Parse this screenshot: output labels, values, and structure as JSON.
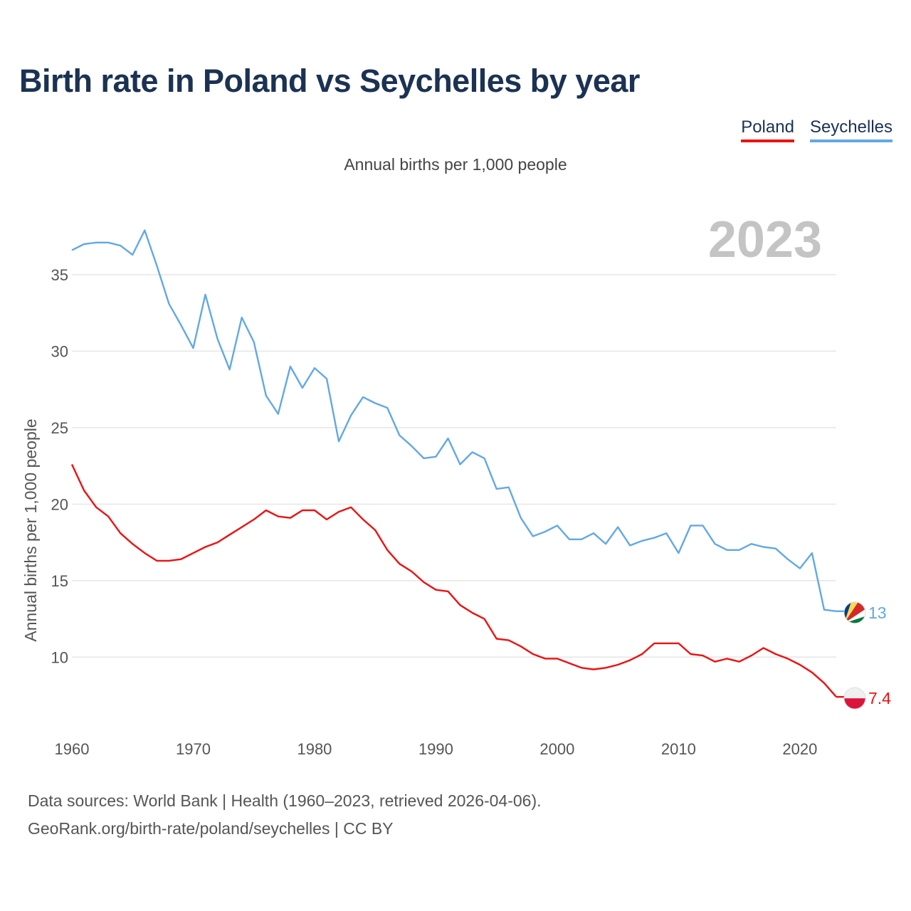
{
  "title": "Birth rate in Poland vs Seychelles by year",
  "subtitle": "Annual births per 1,000 people",
  "legend": [
    {
      "label": "Poland",
      "color": "#ee1111"
    },
    {
      "label": "Seychelles",
      "color": "#62a8e5"
    }
  ],
  "footer": {
    "sources": "Data sources: World Bank | Health (1960–2023, retrieved 2026-04-06).",
    "credit": "GeoRank.org/birth-rate/poland/seychelles | CC BY"
  },
  "chart_data": {
    "type": "line",
    "title": "Birth rate in Poland vs Seychelles by year",
    "ylabel": "Annual births per 1,000 people",
    "xlabel": "",
    "year_watermark": "2023",
    "xlim": [
      1960,
      2023
    ],
    "ylim": [
      5.5,
      39
    ],
    "x_ticks": [
      1960,
      1970,
      1980,
      1990,
      2000,
      2010,
      2020
    ],
    "y_ticks": [
      10,
      15,
      20,
      25,
      30,
      35
    ],
    "grid": true,
    "x": [
      1960,
      1961,
      1962,
      1963,
      1964,
      1965,
      1966,
      1967,
      1968,
      1969,
      1970,
      1971,
      1972,
      1973,
      1974,
      1975,
      1976,
      1977,
      1978,
      1979,
      1980,
      1981,
      1982,
      1983,
      1984,
      1985,
      1986,
      1987,
      1988,
      1989,
      1990,
      1991,
      1992,
      1993,
      1994,
      1995,
      1996,
      1997,
      1998,
      1999,
      2000,
      2001,
      2002,
      2003,
      2004,
      2005,
      2006,
      2007,
      2008,
      2009,
      2010,
      2011,
      2012,
      2013,
      2014,
      2015,
      2016,
      2017,
      2018,
      2019,
      2020,
      2021,
      2022,
      2023
    ],
    "series": [
      {
        "name": "Poland",
        "color": "#ee1111",
        "end_label": "7.4",
        "values": [
          22.6,
          20.9,
          19.8,
          19.2,
          18.1,
          17.4,
          16.8,
          16.3,
          16.3,
          16.4,
          16.8,
          17.2,
          17.5,
          18.0,
          18.5,
          19.0,
          19.6,
          19.2,
          19.1,
          19.6,
          19.6,
          19.0,
          19.5,
          19.8,
          19.0,
          18.3,
          17.0,
          16.1,
          15.6,
          14.9,
          14.4,
          14.3,
          13.4,
          12.9,
          12.5,
          11.2,
          11.1,
          10.7,
          10.2,
          9.9,
          9.9,
          9.6,
          9.3,
          9.2,
          9.3,
          9.5,
          9.8,
          10.2,
          10.9,
          10.9,
          10.9,
          10.2,
          10.1,
          9.7,
          9.9,
          9.7,
          10.1,
          10.6,
          10.2,
          9.9,
          9.5,
          9.0,
          8.3,
          7.4
        ]
      },
      {
        "name": "Seychelles",
        "color": "#62a8e5",
        "end_label": "13",
        "values": [
          36.6,
          37.0,
          37.1,
          37.1,
          36.9,
          36.3,
          37.9,
          35.6,
          33.1,
          31.7,
          30.2,
          33.7,
          30.8,
          28.8,
          32.2,
          30.6,
          27.1,
          25.9,
          29.0,
          27.6,
          28.9,
          28.2,
          24.1,
          25.8,
          27.0,
          26.6,
          26.3,
          24.5,
          23.8,
          23.0,
          23.1,
          24.3,
          22.6,
          23.4,
          23.0,
          21.0,
          21.1,
          19.1,
          17.9,
          18.2,
          18.6,
          17.7,
          17.7,
          18.1,
          17.4,
          18.5,
          17.3,
          17.6,
          17.8,
          18.1,
          16.8,
          18.6,
          18.6,
          17.4,
          17.0,
          17.0,
          17.4,
          17.2,
          17.1,
          16.4,
          15.8,
          16.8,
          13.1,
          13.0
        ]
      }
    ]
  }
}
